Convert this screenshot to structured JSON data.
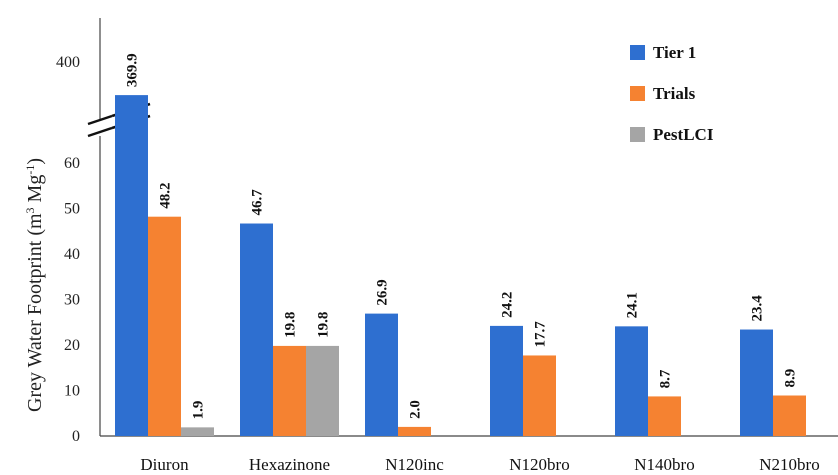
{
  "chart_data": {
    "type": "bar",
    "ylabel": "Grey Water Footprint (m",
    "ylabel_sup1": "3",
    "ylabel_mid": " Mg",
    "ylabel_sup2": "-1",
    "ylabel_end": ")",
    "categories": [
      "Diuron",
      "Hexazinone",
      "N120inc",
      "N120bro",
      "N140bro",
      "N210bro"
    ],
    "series": [
      {
        "name": "Tier 1",
        "color": "#2e6fd0",
        "values": [
          369.9,
          46.7,
          26.9,
          24.2,
          24.1,
          23.4
        ]
      },
      {
        "name": "Trials",
        "color": "#f58231",
        "values": [
          48.2,
          19.8,
          2.0,
          17.7,
          8.7,
          8.9
        ]
      },
      {
        "name": "PestLCI",
        "color": "#a5a5a5",
        "values": [
          1.9,
          19.8,
          null,
          null,
          null,
          null
        ]
      }
    ],
    "data_labels": [
      [
        "369.9",
        "46.7",
        "26.9",
        "24.2",
        "24.1",
        "23.4"
      ],
      [
        "48.2",
        "19.8",
        "2.0",
        "17.7",
        "8.7",
        "8.9"
      ],
      [
        "1.9",
        "19.8",
        null,
        null,
        null,
        null
      ]
    ],
    "yticks": [
      "0",
      "10",
      "20",
      "30",
      "40",
      "50",
      "60",
      "400"
    ],
    "lower_axis_range": [
      0,
      65
    ],
    "upper_axis_tick": 400,
    "axis_break": true,
    "grid": false,
    "legend_position": "top-right"
  }
}
